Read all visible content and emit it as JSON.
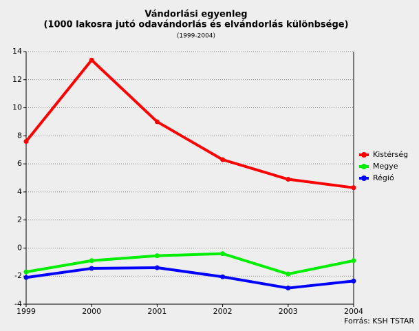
{
  "chart_data": {
    "type": "line",
    "title": "Vándorlási egyenleg",
    "subtitle": "(1000 lakosra jutó odavándorlás és elvándorlás különbsége)",
    "period": "(1999-2004)",
    "source": "Forrás: KSH TSTAR",
    "x": [
      1999,
      2000,
      2001,
      2002,
      2003,
      2004
    ],
    "xlim": [
      1999,
      2004
    ],
    "xticks": [
      1999,
      2000,
      2001,
      2002,
      2003,
      2004
    ],
    "ylim": [
      -4,
      14
    ],
    "yticks": [
      -4,
      -2,
      0,
      2,
      4,
      6,
      8,
      10,
      12,
      14
    ],
    "grid": true,
    "legend": "right",
    "series": [
      {
        "name": "Kistérség",
        "color": "#ff0000",
        "values": [
          7.6,
          13.4,
          9.0,
          6.3,
          4.9,
          4.3
        ]
      },
      {
        "name": "Megye",
        "color": "#00ee00",
        "values": [
          -1.7,
          -0.9,
          -0.55,
          -0.4,
          -1.85,
          -0.9
        ]
      },
      {
        "name": "Régió",
        "color": "#0000ff",
        "values": [
          -2.1,
          -1.45,
          -1.4,
          -2.05,
          -2.85,
          -2.35
        ]
      }
    ]
  }
}
